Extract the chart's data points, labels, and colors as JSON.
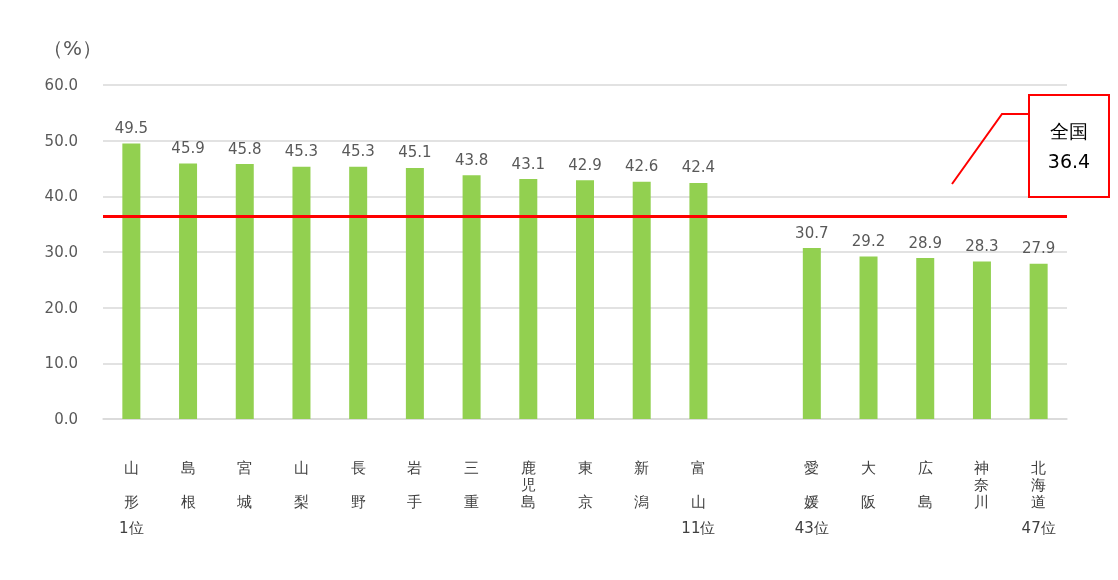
{
  "chart_data": {
    "type": "bar",
    "ylabel": "（%）",
    "categories": [
      "山形",
      "島根",
      "宮城",
      "山梨",
      "長野",
      "岩手",
      "三重",
      "鹿児島",
      "東京",
      "新潟",
      "富山",
      null,
      "愛媛",
      "大阪",
      "広島",
      "神奈川",
      "北海道"
    ],
    "values": [
      49.5,
      45.9,
      45.8,
      45.3,
      45.3,
      45.1,
      43.8,
      43.1,
      42.9,
      42.6,
      42.4,
      null,
      30.7,
      29.2,
      28.9,
      28.3,
      27.9
    ],
    "color": "#92d050",
    "data_labels": true,
    "ylim": [
      0,
      60
    ],
    "yticks": [
      {
        "value": 0,
        "label": "0.0"
      },
      {
        "value": 10,
        "label": "10.0"
      },
      {
        "value": 20,
        "label": "20.0"
      },
      {
        "value": 30,
        "label": "30.0"
      },
      {
        "value": 40,
        "label": "40.0"
      },
      {
        "value": 50,
        "label": "50.0"
      },
      {
        "value": 60,
        "label": "60.0"
      }
    ],
    "grid": "y",
    "ref_lines": [
      {
        "axis": "y",
        "value": 36.4,
        "label": "全国 36.4",
        "color": "#ff0000"
      }
    ],
    "annotations": [
      "1位",
      "11位",
      "43位",
      "47位"
    ]
  }
}
